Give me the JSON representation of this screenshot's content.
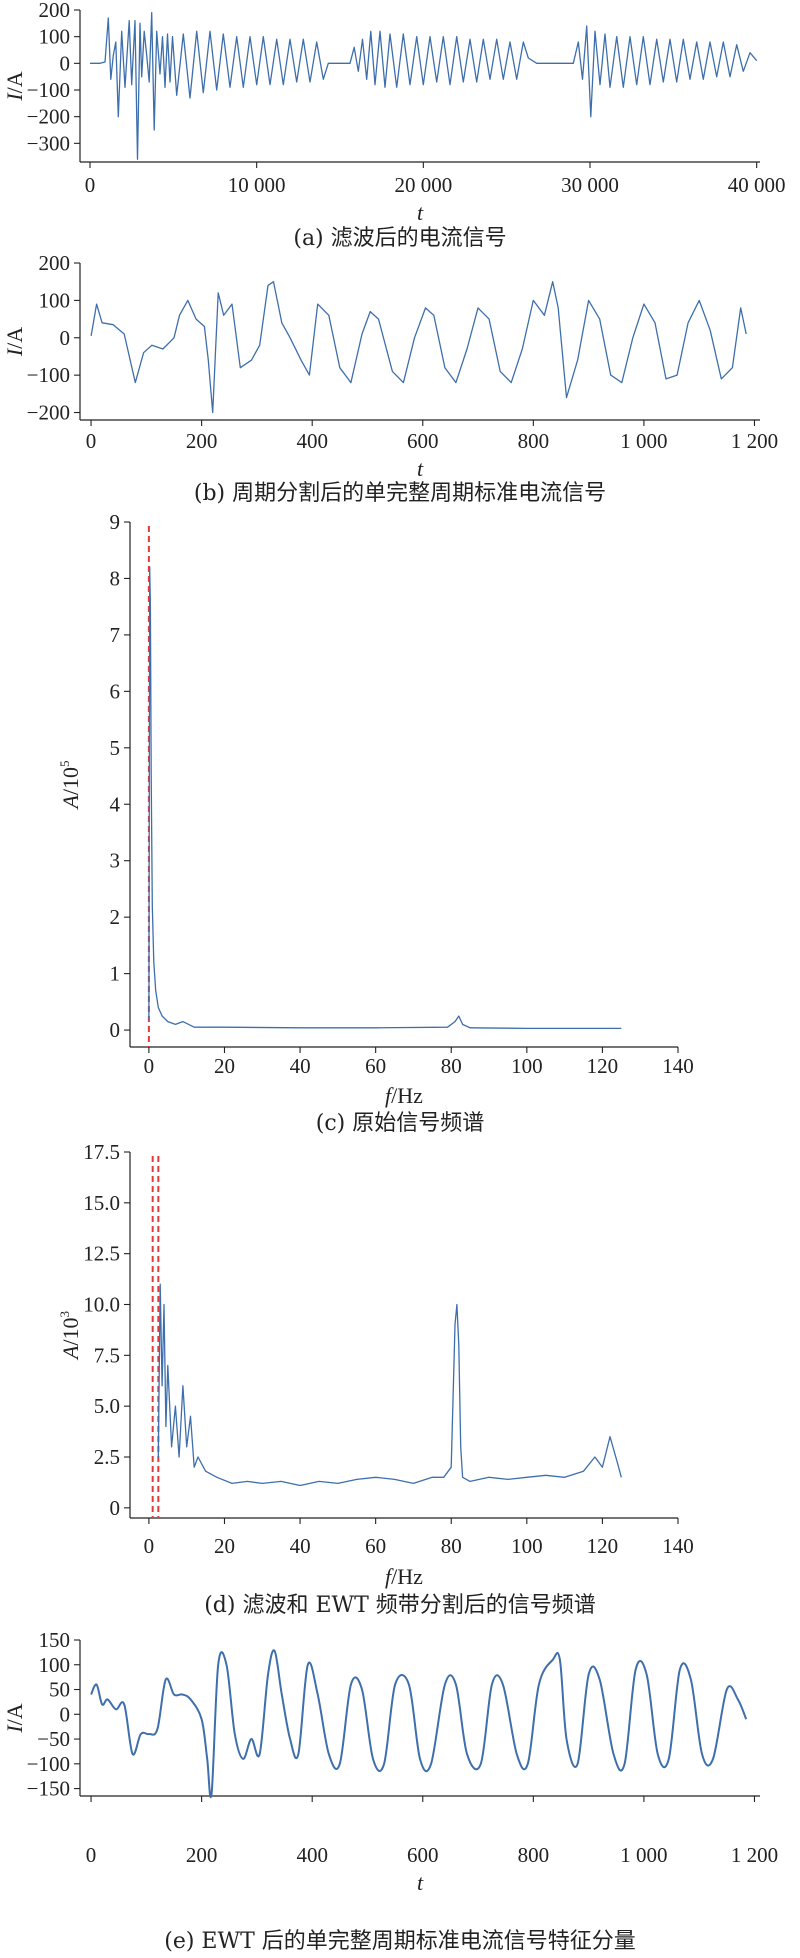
{
  "chart_data": [
    {
      "id": "a",
      "type": "line",
      "caption": "(a) 滤波后的电流信号",
      "xlabel": "t",
      "ylabel": "I/A",
      "xlim": [
        -600,
        40200
      ],
      "ylim": [
        -370,
        200
      ],
      "xticks": [
        0,
        10000,
        20000,
        30000,
        40000
      ],
      "xtick_labels": [
        "0",
        "10 000",
        "20 000",
        "30 000",
        "40 000"
      ],
      "yticks": [
        200,
        100,
        0,
        -100,
        -200,
        -300
      ],
      "ytick_labels": [
        "200",
        "100",
        "0",
        "−100",
        "−200",
        "−300"
      ],
      "series": [
        {
          "x": [
            0,
            600,
            900,
            1100,
            1250,
            1400,
            1550,
            1700,
            1900,
            2100,
            2350,
            2500,
            2700,
            2850,
            3000,
            3100,
            3250,
            3400,
            3550,
            3700,
            3850,
            4000,
            4200,
            4350,
            4500,
            4650,
            4800,
            4950,
            5200,
            5600,
            6000,
            6400,
            6800,
            7200,
            7600,
            8000,
            8400,
            8800,
            9200,
            9600,
            10000,
            10400,
            10800,
            11200,
            11600,
            12000,
            12400,
            12800,
            13200,
            13600,
            14000,
            14300,
            14800,
            15300,
            15600,
            15850,
            16100,
            16350,
            16600,
            16850,
            17100,
            17400,
            17700,
            18000,
            18400,
            18800,
            19200,
            19600,
            20000,
            20400,
            20800,
            21200,
            21600,
            22000,
            22400,
            22800,
            23200,
            23600,
            24000,
            24400,
            24800,
            25200,
            25600,
            26000,
            26300,
            26800,
            27400,
            28000,
            28600,
            29000,
            29300,
            29550,
            29800,
            30050,
            30300,
            30600,
            30900,
            31200,
            31600,
            32000,
            32400,
            32800,
            33200,
            33600,
            34000,
            34400,
            34800,
            35200,
            35600,
            36000,
            36400,
            36800,
            37200,
            37600,
            38000,
            38400,
            38800,
            39200,
            39600,
            40000
          ],
          "y": [
            0,
            0,
            5,
            170,
            -60,
            30,
            80,
            -200,
            120,
            -90,
            160,
            -80,
            160,
            -360,
            150,
            -50,
            120,
            30,
            -70,
            190,
            -250,
            120,
            -40,
            100,
            -90,
            110,
            -70,
            100,
            -120,
            110,
            -130,
            120,
            -110,
            120,
            -100,
            110,
            -90,
            100,
            -90,
            100,
            -80,
            100,
            -80,
            90,
            -80,
            90,
            -70,
            90,
            -70,
            80,
            -60,
            0,
            0,
            0,
            0,
            60,
            -30,
            90,
            -60,
            120,
            -80,
            120,
            -90,
            110,
            -90,
            110,
            -80,
            100,
            -80,
            100,
            -70,
            100,
            -80,
            100,
            -70,
            90,
            -70,
            90,
            -60,
            90,
            -60,
            80,
            -60,
            80,
            20,
            0,
            0,
            0,
            0,
            0,
            80,
            -60,
            140,
            -200,
            120,
            -80,
            110,
            -90,
            100,
            -90,
            100,
            -80,
            100,
            -80,
            90,
            -70,
            90,
            -70,
            90,
            -60,
            80,
            -60,
            80,
            -50,
            80,
            -50,
            70,
            -30,
            40,
            10
          ]
        }
      ]
    },
    {
      "id": "b",
      "type": "line",
      "caption": "(b) 周期分割后的单完整周期标准电流信号",
      "xlabel": "t",
      "ylabel": "I/A",
      "xlim": [
        -20,
        1210
      ],
      "ylim": [
        -220,
        200
      ],
      "xticks": [
        0,
        200,
        400,
        600,
        800,
        1000,
        1200
      ],
      "xtick_labels": [
        "0",
        "200",
        "400",
        "600",
        "800",
        "1 000",
        "1 200"
      ],
      "yticks": [
        200,
        100,
        0,
        -100,
        -200
      ],
      "ytick_labels": [
        "200",
        "100",
        "0",
        "−100",
        "−200"
      ],
      "series": [
        {
          "x": [
            0,
            10,
            20,
            40,
            60,
            80,
            95,
            110,
            130,
            150,
            160,
            175,
            190,
            205,
            212,
            220,
            230,
            240,
            255,
            270,
            290,
            305,
            320,
            330,
            345,
            360,
            380,
            395,
            410,
            430,
            450,
            470,
            490,
            505,
            520,
            545,
            565,
            585,
            605,
            620,
            640,
            660,
            680,
            700,
            720,
            740,
            760,
            780,
            800,
            820,
            835,
            845,
            860,
            880,
            900,
            920,
            940,
            960,
            980,
            1000,
            1020,
            1040,
            1060,
            1080,
            1100,
            1120,
            1140,
            1160,
            1175,
            1185
          ],
          "y": [
            5,
            90,
            40,
            35,
            10,
            -120,
            -40,
            -20,
            -30,
            0,
            60,
            100,
            50,
            30,
            -60,
            -200,
            120,
            60,
            90,
            -80,
            -60,
            -20,
            140,
            150,
            40,
            0,
            -60,
            -100,
            90,
            60,
            -80,
            -120,
            10,
            70,
            50,
            -90,
            -120,
            0,
            80,
            60,
            -80,
            -120,
            -30,
            80,
            50,
            -90,
            -120,
            -30,
            100,
            60,
            150,
            80,
            -160,
            -60,
            100,
            50,
            -100,
            -120,
            0,
            90,
            40,
            -110,
            -100,
            40,
            100,
            20,
            -110,
            -80,
            80,
            10
          ]
        }
      ]
    },
    {
      "id": "c",
      "type": "line",
      "caption": "(c) 原始信号频谱",
      "xlabel": "f/Hz",
      "ylabel": "A/10⁵",
      "xlim": [
        -5,
        140
      ],
      "ylim": [
        -0.3,
        9
      ],
      "xticks": [
        0,
        20,
        40,
        60,
        80,
        100,
        120,
        140
      ],
      "xtick_labels": [
        "0",
        "20",
        "40",
        "60",
        "80",
        "100",
        "120",
        "140"
      ],
      "yticks": [
        9,
        8,
        7,
        6,
        5,
        4,
        3,
        2,
        1,
        0
      ],
      "ytick_labels": [
        "9",
        "8",
        "7",
        "6",
        "5",
        "4",
        "3",
        "2",
        "1",
        "0"
      ],
      "markers_x": [
        0
      ],
      "series": [
        {
          "x": [
            0,
            0.2,
            0.4,
            0.6,
            0.9,
            1.3,
            1.8,
            2.5,
            3.5,
            5,
            7,
            9,
            12,
            20,
            40,
            60,
            79,
            81,
            82,
            83,
            85,
            100,
            125
          ],
          "y": [
            0.2,
            8.2,
            7.5,
            4.5,
            2.2,
            1.2,
            0.7,
            0.4,
            0.25,
            0.15,
            0.1,
            0.15,
            0.05,
            0.05,
            0.04,
            0.04,
            0.05,
            0.15,
            0.25,
            0.1,
            0.04,
            0.03,
            0.03
          ]
        }
      ]
    },
    {
      "id": "d",
      "type": "line",
      "caption": "(d) 滤波和 EWT 频带分割后的信号频谱",
      "xlabel": "f/Hz",
      "ylabel": "A/10³",
      "xlim": [
        -5,
        140
      ],
      "ylim": [
        -0.5,
        17.5
      ],
      "xticks": [
        0,
        20,
        40,
        60,
        80,
        100,
        120,
        140
      ],
      "xtick_labels": [
        "0",
        "20",
        "40",
        "60",
        "80",
        "100",
        "120",
        "140"
      ],
      "yticks": [
        17.5,
        15.0,
        12.5,
        10.0,
        7.5,
        5.0,
        2.5,
        0
      ],
      "ytick_labels": [
        "17.5",
        "15.0",
        "12.5",
        "10.0",
        "7.5",
        "5.0",
        "2.5",
        "0"
      ],
      "markers_x": [
        1,
        2.5
      ],
      "series": [
        {
          "x": [
            2.5,
            3,
            3.5,
            4,
            4.5,
            5,
            6,
            7,
            8,
            9,
            10,
            11,
            12,
            13,
            15,
            18,
            22,
            26,
            30,
            35,
            40,
            45,
            50,
            55,
            60,
            65,
            70,
            75,
            78,
            80,
            81,
            81.5,
            82,
            82.5,
            83,
            85,
            90,
            95,
            100,
            105,
            110,
            115,
            118,
            120,
            122,
            124,
            125
          ],
          "y": [
            2.5,
            11,
            6,
            10,
            4,
            7,
            3,
            5,
            2.5,
            6,
            3,
            4.5,
            2,
            2.5,
            1.8,
            1.5,
            1.2,
            1.3,
            1.2,
            1.3,
            1.1,
            1.3,
            1.2,
            1.4,
            1.5,
            1.4,
            1.2,
            1.5,
            1.5,
            2,
            9,
            10,
            8,
            3,
            1.5,
            1.3,
            1.5,
            1.4,
            1.5,
            1.6,
            1.5,
            1.8,
            2.5,
            2,
            3.5,
            2.2,
            1.5
          ]
        }
      ]
    },
    {
      "id": "e",
      "type": "line",
      "caption": "(e) EWT 后的单完整周期标准电流信号特征分量",
      "xlabel": "t",
      "ylabel": "I/A",
      "xlim": [
        -20,
        1210
      ],
      "ylim": [
        -165,
        150
      ],
      "xticks": [
        0,
        200,
        400,
        600,
        800,
        1000,
        1200
      ],
      "xtick_labels": [
        "0",
        "200",
        "400",
        "600",
        "800",
        "1 000",
        "1 200"
      ],
      "yticks": [
        150,
        100,
        50,
        0,
        -50,
        -100,
        -150
      ],
      "ytick_labels": [
        "150",
        "100",
        "50",
        "0",
        "−50",
        "−100",
        "−150"
      ],
      "series": [
        {
          "smooth": true,
          "x": [
            0,
            10,
            20,
            30,
            45,
            60,
            75,
            90,
            105,
            120,
            135,
            150,
            165,
            180,
            200,
            210,
            218,
            230,
            245,
            260,
            275,
            290,
            305,
            320,
            332,
            345,
            360,
            375,
            392,
            410,
            430,
            450,
            470,
            490,
            510,
            530,
            550,
            575,
            595,
            615,
            640,
            660,
            680,
            705,
            725,
            745,
            770,
            790,
            810,
            835,
            848,
            860,
            880,
            900,
            920,
            945,
            965,
            985,
            1005,
            1025,
            1045,
            1065,
            1085,
            1105,
            1125,
            1150,
            1170,
            1185
          ],
          "y": [
            40,
            60,
            20,
            30,
            10,
            20,
            -80,
            -40,
            -40,
            -30,
            70,
            40,
            40,
            30,
            -10,
            -90,
            -160,
            100,
            100,
            -40,
            -90,
            -50,
            -80,
            80,
            128,
            40,
            -50,
            -80,
            100,
            40,
            -80,
            -100,
            60,
            50,
            -90,
            -100,
            60,
            60,
            -90,
            -100,
            60,
            60,
            -80,
            -100,
            60,
            60,
            -80,
            -100,
            60,
            110,
            110,
            -50,
            -100,
            80,
            70,
            -80,
            -100,
            90,
            80,
            -80,
            -90,
            90,
            70,
            -80,
            -90,
            50,
            30,
            -10
          ]
        }
      ]
    }
  ]
}
